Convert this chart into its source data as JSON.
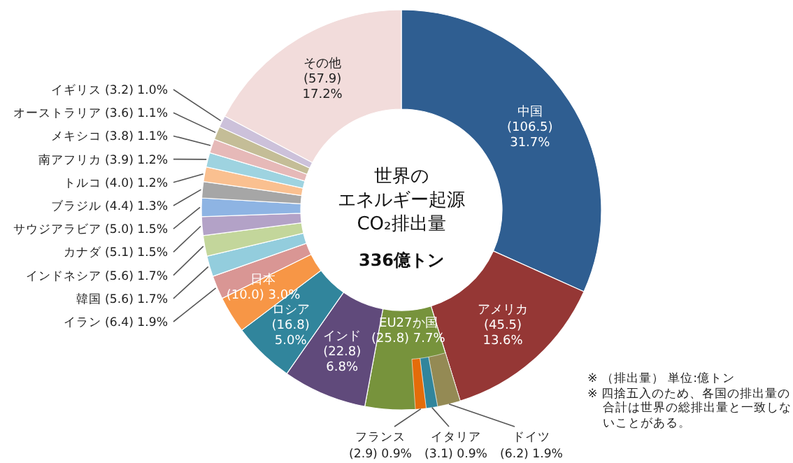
{
  "chart_data": [
    {
      "type": "donut",
      "title": "世界のエネルギー起源CO₂排出量",
      "subtitle": "336億トン",
      "categories": [
        "中国",
        "アメリカ",
        "EU27か国",
        "インド",
        "ロシア",
        "日本",
        "イラン",
        "韓国",
        "インドネシア",
        "カナダ",
        "サウジアラビア",
        "ブラジル",
        "トルコ",
        "南アフリカ",
        "メキシコ",
        "オーストラリア",
        "イギリス",
        "その他"
      ],
      "values": [
        106.5,
        45.5,
        25.8,
        22.8,
        16.8,
        10.0,
        6.4,
        5.6,
        5.6,
        5.1,
        5.0,
        4.4,
        4.0,
        3.9,
        3.8,
        3.6,
        3.2,
        57.9
      ],
      "colors": [
        "#2f5e91",
        "#953735",
        "#77933c",
        "#604a7b",
        "#31859c",
        "#f79646",
        "#d99694",
        "#93cddd",
        "#c3d69b",
        "#b3a2c7",
        "#8eb4e3",
        "#a6a6a6",
        "#fac090",
        "#9ed3e0",
        "#e6b9b8",
        "#c4bd97",
        "#ccc1da",
        "#f2dcdb"
      ],
      "value_labels": [
        "(106.5) 31.7%",
        "(45.5) 13.6%",
        "(25.8) 7.7%",
        "(22.8) 6.8%",
        "(16.8) 5.0%",
        "(10.0) 3.0%",
        "(6.4) 1.9%",
        "(5.6) 1.7%",
        "(5.6) 1.7%",
        "(5.1) 1.5%",
        "(5.0) 1.5%",
        "(4.4) 1.3%",
        "(4.0) 1.2%",
        "(3.9) 1.2%",
        "(3.8) 1.1%",
        "(3.6) 1.1%",
        "(3.2) 1.0%",
        "(57.9) 17.2%"
      ],
      "annotations": [
        "※ （排出量） 単位:億トン",
        "※ 四捨五入のため、各国の排出量の合計は世界の総排出量と一致しないことがある。"
      ]
    },
    {
      "type": "pie",
      "categories": [
        "ドイツ",
        "イタリア",
        "フランス"
      ],
      "values": [
        6.2,
        3.1,
        2.9
      ],
      "colors": [
        "#948a54",
        "#31859c",
        "#e46c0a"
      ],
      "value_labels": [
        "(6.2) 1.9%",
        "(3.1) 0.9%",
        "(2.9) 0.9%"
      ]
    }
  ]
}
